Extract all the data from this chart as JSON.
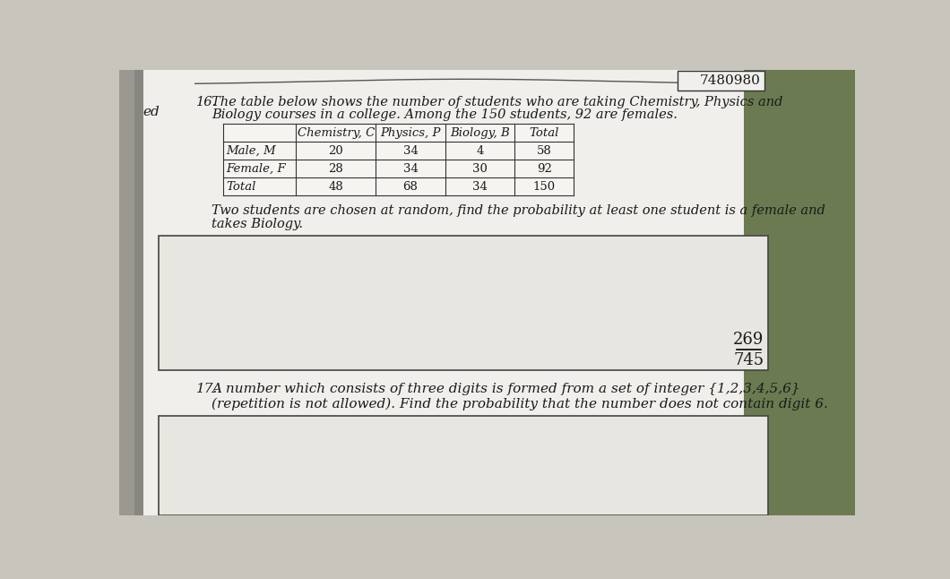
{
  "page_id": "7480980",
  "page_bg": "#e8e7e2",
  "outer_bg": "#c8c5bc",
  "right_bg": "#7a8a60",
  "q16_number": "16.",
  "q16_intro1": "The table below shows the number of students who are taking Chemistry, Physics and",
  "q16_intro2": "Biology courses in a college. Among the 150 students, 92 are females.",
  "table_headers": [
    "",
    "Chemistry, C",
    "Physics, P",
    "Biology, B",
    "Total"
  ],
  "table_rows": [
    [
      "Male, M",
      "20",
      "34",
      "4",
      "58"
    ],
    [
      "Female, F",
      "28",
      "34",
      "30",
      "92"
    ],
    [
      "Total",
      "48",
      "68",
      "34",
      "150"
    ]
  ],
  "q16_follow1": "Two students are chosen at random, find the probability at least one student is a female and",
  "q16_follow2": "takes Biology.",
  "answer_num": "269",
  "answer_den": "745",
  "q17_number": "17.",
  "q17_text1": "A number which consists of three digits is formed from a set of integer",
  "q17_set": " {1,2,3,4,5,6}",
  "q17_text2": "(repetition is not allowed). Find the probability that the number does not contain digit 6.",
  "text_color": "#1a1a1a",
  "box_bg": "#e2e0da",
  "table_line_color": "#333333",
  "answer_box_border": "#444444"
}
